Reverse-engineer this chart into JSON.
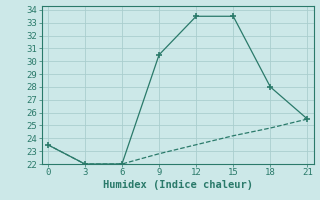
{
  "xlabel": "Humidex (Indice chaleur)",
  "line1_x": [
    0,
    3,
    6,
    9,
    12,
    15,
    18,
    21
  ],
  "line1_y": [
    23.5,
    22,
    22,
    30.5,
    33.5,
    33.5,
    28,
    25.5
  ],
  "line2_x": [
    0,
    3,
    6,
    9,
    12,
    15,
    18,
    21
  ],
  "line2_y": [
    23.5,
    22,
    22,
    22.8,
    23.5,
    24.2,
    24.8,
    25.5
  ],
  "line_color": "#2a7a6a",
  "bg_color": "#cce8e8",
  "grid_color": "#aacece",
  "xlim": [
    -0.5,
    21.5
  ],
  "ylim": [
    22,
    34.3
  ],
  "xticks": [
    0,
    3,
    6,
    9,
    12,
    15,
    18,
    21
  ],
  "yticks": [
    22,
    23,
    24,
    25,
    26,
    27,
    28,
    29,
    30,
    31,
    32,
    33,
    34
  ],
  "tick_fontsize": 6.5,
  "label_fontsize": 7.5
}
